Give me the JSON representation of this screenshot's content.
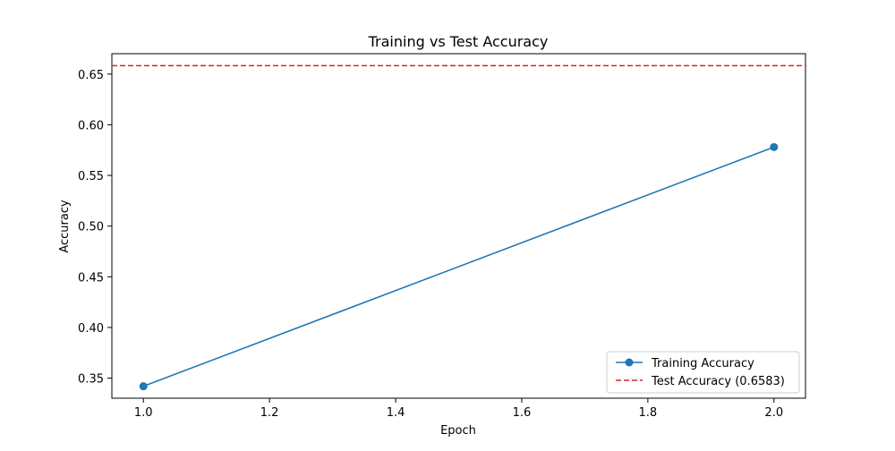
{
  "chart_data": {
    "type": "line",
    "title": "Training vs Test Accuracy",
    "xlabel": "Epoch",
    "ylabel": "Accuracy",
    "xlim": [
      0.95,
      2.05
    ],
    "ylim": [
      0.3302,
      0.6701
    ],
    "xticks": [
      1.0,
      1.2,
      1.4,
      1.6,
      1.8,
      2.0
    ],
    "xtick_labels": [
      "1.0",
      "1.2",
      "1.4",
      "1.6",
      "1.8",
      "2.0"
    ],
    "yticks": [
      0.35,
      0.4,
      0.45,
      0.5,
      0.55,
      0.6,
      0.65
    ],
    "ytick_labels": [
      "0.35",
      "0.40",
      "0.45",
      "0.50",
      "0.55",
      "0.60",
      "0.65"
    ],
    "grid": false,
    "legend_position": "lower-right",
    "series": [
      {
        "name": "Training Accuracy",
        "x": [
          1.0,
          2.0
        ],
        "values": [
          0.342,
          0.578
        ],
        "color": "#1f77b4",
        "style": "solid",
        "marker": "circle"
      }
    ],
    "reference_lines": [
      {
        "name": "Test Accuracy (0.6583)",
        "y": 0.6583,
        "color": "#d62728",
        "style": "dashed"
      }
    ]
  }
}
